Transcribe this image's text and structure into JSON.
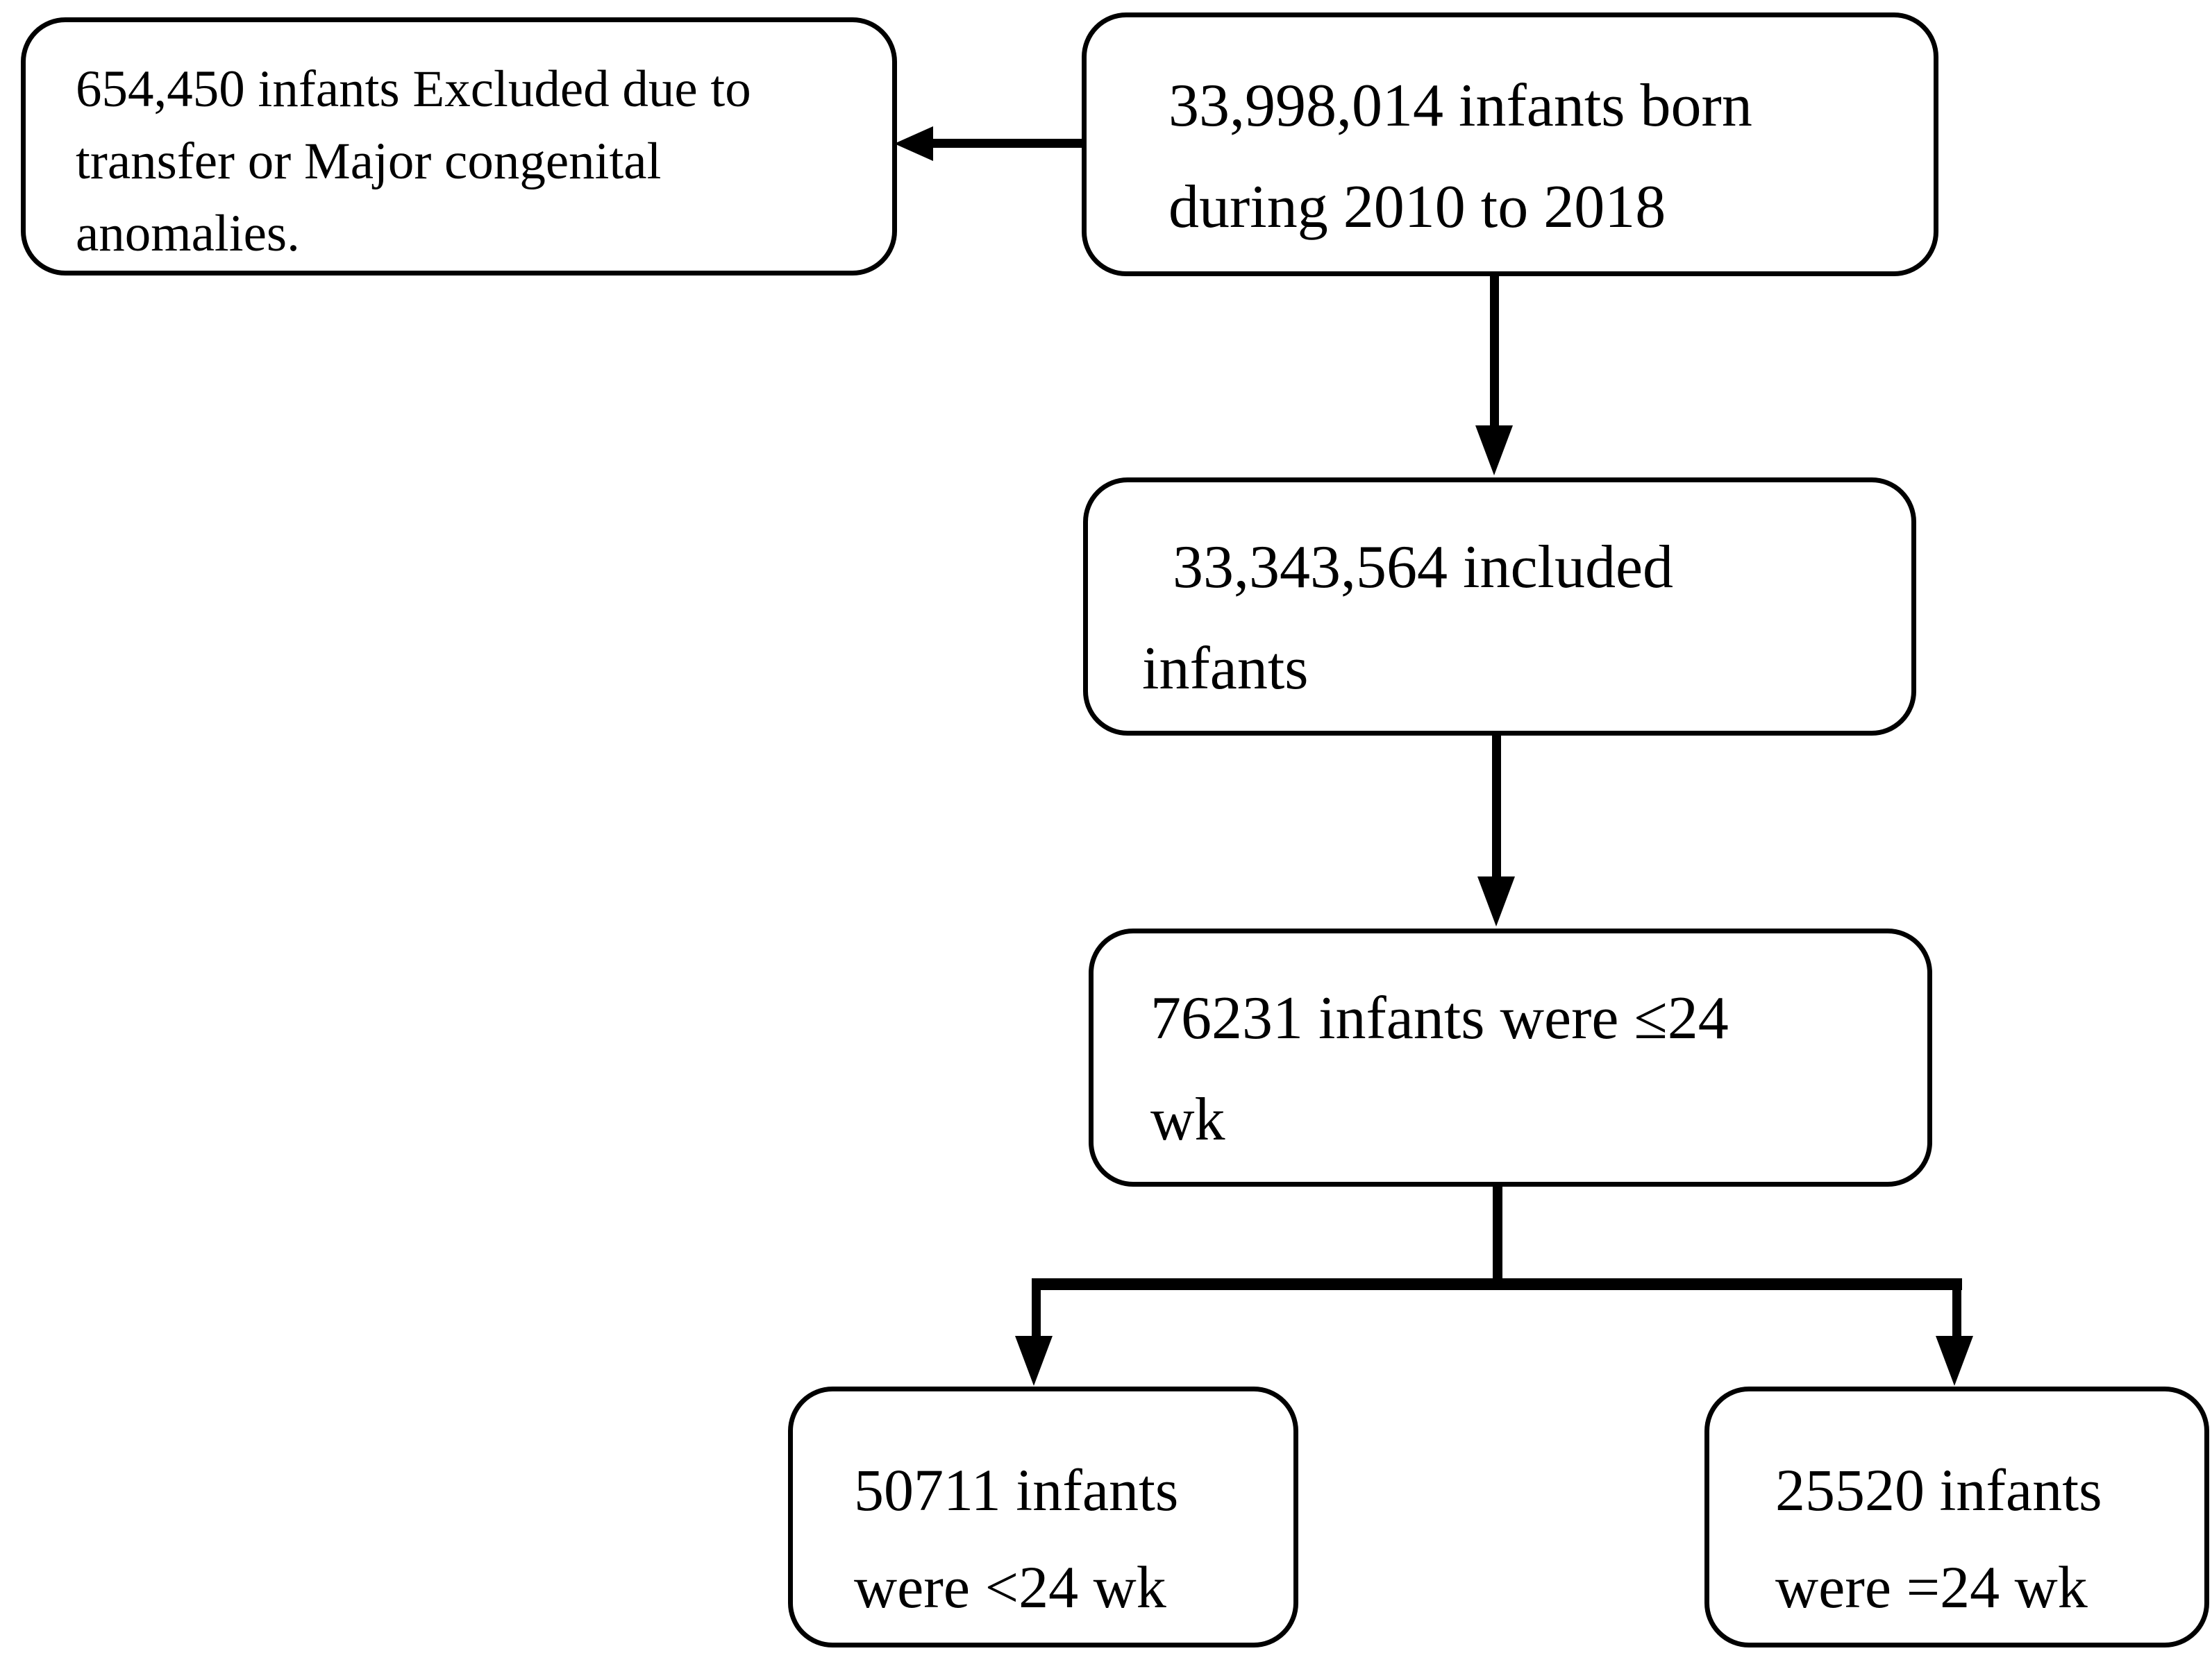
{
  "diagram": {
    "background_color": "#ffffff",
    "line_color": "#000000",
    "boxes": {
      "excluded": {
        "text": "654,450 infants Excluded due to\ntransfer or Major congenital\nanomalies."
      },
      "born": {
        "text": "33,998,014 infants born\nduring 2010 to 2018"
      },
      "included": {
        "text": "  33,343,564 included\ninfants"
      },
      "le24": {
        "text": "76231 infants were ≤24\nwk"
      },
      "lt24": {
        "text": "50711 infants\nwere <24 wk"
      },
      "eq24": {
        "text": "25520 infants\nwere =24 wk"
      }
    }
  }
}
